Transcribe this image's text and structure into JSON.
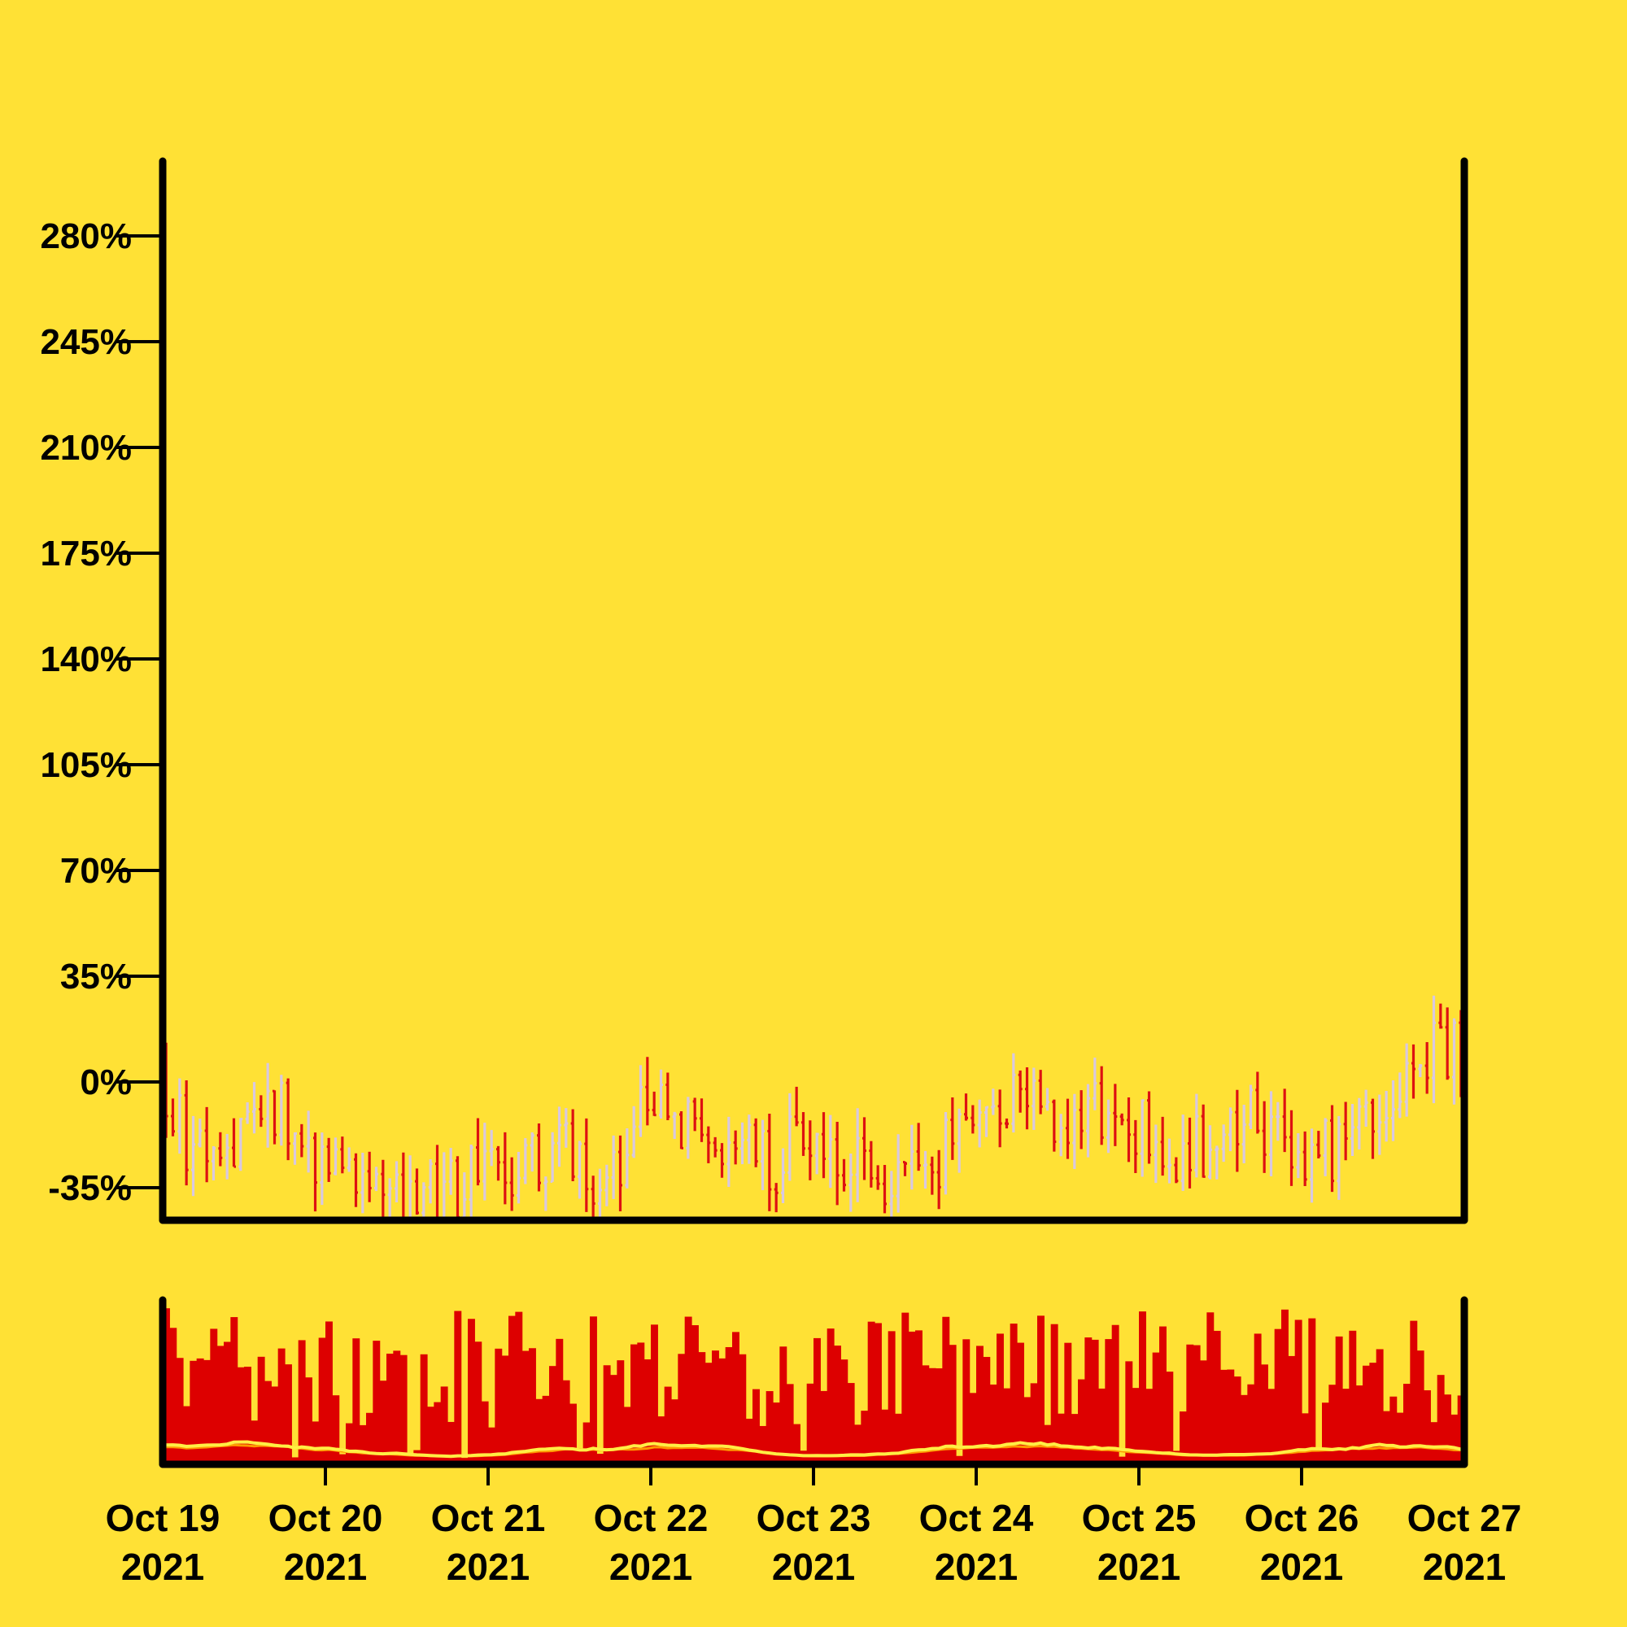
{
  "chart_data": {
    "type": "ohlc",
    "title": "",
    "xlabel": "",
    "ylabel": "",
    "x_ticks": [
      {
        "line1": "Oct 19",
        "line2": "2021",
        "date": "2021-10-19"
      },
      {
        "line1": "Oct 20",
        "line2": "2021",
        "date": "2021-10-20"
      },
      {
        "line1": "Oct 21",
        "line2": "2021",
        "date": "2021-10-21"
      },
      {
        "line1": "Oct 22",
        "line2": "2021",
        "date": "2021-10-22"
      },
      {
        "line1": "Oct 23",
        "line2": "2021",
        "date": "2021-10-23"
      },
      {
        "line1": "Oct 24",
        "line2": "2021",
        "date": "2021-10-24"
      },
      {
        "line1": "Oct 25",
        "line2": "2021",
        "date": "2021-10-25"
      },
      {
        "line1": "Oct 26",
        "line2": "2021",
        "date": "2021-10-26"
      },
      {
        "line1": "Oct 27",
        "line2": "2021",
        "date": "2021-10-27"
      }
    ],
    "y_ticks": [
      {
        "label": "-35%",
        "value": -35
      },
      {
        "label": "0%",
        "value": 0
      },
      {
        "label": "35%",
        "value": 35
      },
      {
        "label": "70%",
        "value": 70
      },
      {
        "label": "105%",
        "value": 105
      },
      {
        "label": "140%",
        "value": 140
      },
      {
        "label": "175%",
        "value": 175
      },
      {
        "label": "210%",
        "value": 210
      },
      {
        "label": "245%",
        "value": 245
      },
      {
        "label": "280%",
        "value": 280
      }
    ],
    "xlim": [
      "2021-10-19T00:00",
      "2021-10-27T00:00"
    ],
    "ylim": [
      -45,
      305
    ],
    "grid": false,
    "candle_interval_hours": 1,
    "up_color": "#d8c8e0",
    "down_color": "#dd1111",
    "volume_color": "#dd0000",
    "volume_ma_colors": [
      "#ffee44",
      "#ff9900"
    ],
    "background": "#ffe135",
    "close_pct_anchors": [
      [
        "2021-10-19T00:00",
        5
      ],
      [
        "2021-10-19T04:00",
        -22
      ],
      [
        "2021-10-19T08:00",
        -30
      ],
      [
        "2021-10-19T12:00",
        -18
      ],
      [
        "2021-10-19T18:00",
        -10
      ],
      [
        "2021-10-20T00:00",
        -25
      ],
      [
        "2021-10-20T06:00",
        -30
      ],
      [
        "2021-10-20T12:00",
        -36
      ],
      [
        "2021-10-20T18:00",
        -38
      ],
      [
        "2021-10-21T00:00",
        -28
      ],
      [
        "2021-10-21T06:00",
        -30
      ],
      [
        "2021-10-21T12:00",
        -20
      ],
      [
        "2021-10-21T18:00",
        -35
      ],
      [
        "2021-10-22T00:00",
        -5
      ],
      [
        "2021-10-22T04:00",
        -10
      ],
      [
        "2021-10-22T10:00",
        -20
      ],
      [
        "2021-10-22T18:00",
        -28
      ],
      [
        "2021-10-23T00:00",
        -15
      ],
      [
        "2021-10-23T06:00",
        -28
      ],
      [
        "2021-10-23T12:00",
        -35
      ],
      [
        "2021-10-23T18:00",
        -30
      ],
      [
        "2021-10-24T00:00",
        -5
      ],
      [
        "2021-10-24T06:00",
        -8
      ],
      [
        "2021-10-24T12:00",
        -12
      ],
      [
        "2021-10-24T18:00",
        -8
      ],
      [
        "2021-10-25T00:00",
        -15
      ],
      [
        "2021-10-25T06:00",
        -22
      ],
      [
        "2021-10-25T12:00",
        -20
      ],
      [
        "2021-10-25T18:00",
        -12
      ],
      [
        "2021-10-26T00:00",
        -25
      ],
      [
        "2021-10-26T06:00",
        -22
      ],
      [
        "2021-10-26T12:00",
        -5
      ],
      [
        "2021-10-26T18:00",
        12
      ],
      [
        "2021-10-27T00:00",
        8
      ]
    ]
  }
}
